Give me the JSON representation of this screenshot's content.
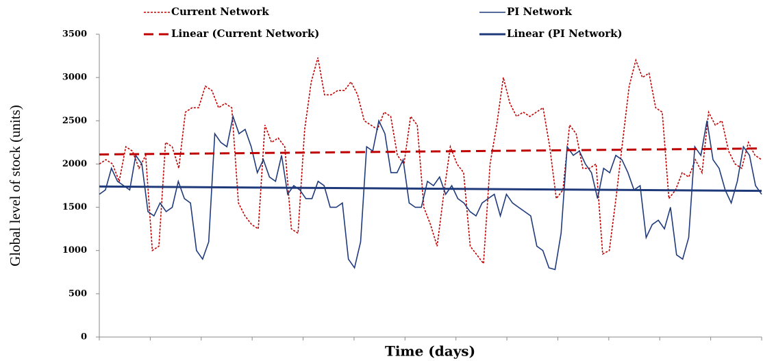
{
  "chart_data": {
    "type": "line",
    "xlabel": "Time (days)",
    "ylabel": "Global level of stock (units)",
    "ylim": [
      0,
      3500
    ],
    "yticks": [
      0,
      500,
      1000,
      1500,
      2000,
      2500,
      3000,
      3500
    ],
    "grid": false,
    "series": [
      {
        "name": "Current Network",
        "color": "#c00000",
        "line_style": "dotted",
        "trendline": false,
        "values": [
          2000,
          2050,
          2000,
          1800,
          2200,
          2150,
          1950,
          2100,
          1000,
          1050,
          2250,
          2200,
          1950,
          2600,
          2650,
          2650,
          2900,
          2850,
          2650,
          2700,
          2650,
          1550,
          1400,
          1300,
          1250,
          2450,
          2250,
          2300,
          2200,
          1250,
          1200,
          2400,
          2950,
          3230,
          2800,
          2800,
          2850,
          2850,
          2950,
          2800,
          2500,
          2450,
          2400,
          2600,
          2550,
          2100,
          2000,
          2550,
          2450,
          1500,
          1300,
          1050,
          1650,
          2200,
          2000,
          1900,
          1050,
          950,
          850,
          2000,
          2450,
          3000,
          2700,
          2550,
          2600,
          2550,
          2600,
          2650,
          2200,
          1600,
          1700,
          2450,
          2350,
          1950,
          1950,
          2000,
          960,
          1000,
          1600,
          2250,
          2900,
          3200,
          3000,
          3050,
          2650,
          2600,
          1600,
          1700,
          1900,
          1850,
          2050,
          1900,
          2600,
          2450,
          2500,
          2150,
          2000,
          1950,
          2250,
          2100,
          2050
        ]
      },
      {
        "name": "PI Network",
        "color": "#1f3a7a",
        "line_style": "solid",
        "trendline": false,
        "values": [
          1650,
          1700,
          1950,
          1800,
          1750,
          1700,
          2100,
          2000,
          1450,
          1400,
          1550,
          1450,
          1500,
          1800,
          1600,
          1550,
          1000,
          900,
          1100,
          2350,
          2250,
          2200,
          2550,
          2350,
          2400,
          2200,
          1900,
          2050,
          1850,
          1800,
          2100,
          1650,
          1750,
          1700,
          1600,
          1600,
          1800,
          1750,
          1500,
          1500,
          1550,
          900,
          800,
          1100,
          2200,
          2150,
          2500,
          2350,
          1900,
          1900,
          2050,
          1550,
          1500,
          1500,
          1800,
          1750,
          1850,
          1650,
          1750,
          1600,
          1550,
          1450,
          1400,
          1550,
          1600,
          1650,
          1400,
          1650,
          1550,
          1500,
          1450,
          1400,
          1050,
          1000,
          800,
          780,
          1200,
          2200,
          2100,
          2150,
          2000,
          1900,
          1600,
          1950,
          1900,
          2100,
          2050,
          1900,
          1700,
          1750,
          1150,
          1300,
          1350,
          1250,
          1500,
          950,
          900,
          1150,
          2200,
          2100,
          2500,
          2050,
          1950,
          1700,
          1550,
          1800,
          2200,
          2100,
          1750,
          1650
        ]
      },
      {
        "name": "Linear (Current Network)",
        "color": "#c00000",
        "line_style": "dashed",
        "trendline": true,
        "values": [
          2110,
          2180
        ]
      },
      {
        "name": "Linear (PI Network)",
        "color": "#1f3a7a",
        "line_style": "solid",
        "trendline": true,
        "values": [
          1740,
          1690
        ]
      }
    ]
  }
}
